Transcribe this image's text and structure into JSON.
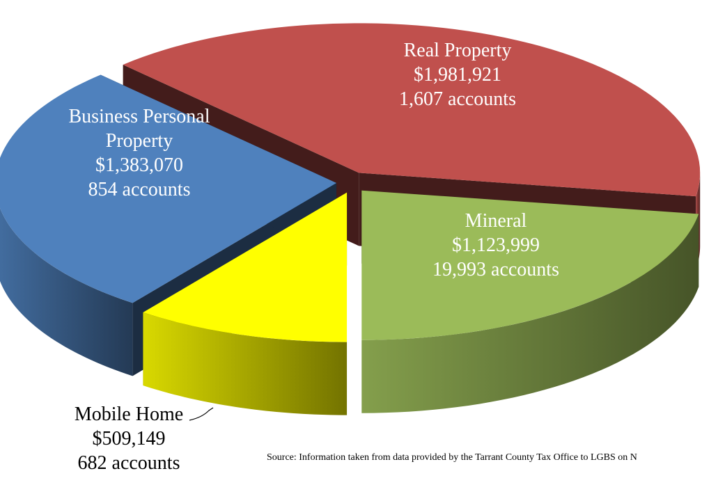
{
  "chart_data": {
    "type": "pie",
    "categories": [
      "Real Property",
      "Mineral",
      "Mobile Home",
      "Business Personal Property"
    ],
    "values": [
      1981921,
      1123999,
      509149,
      1383070
    ],
    "value_labels": [
      "$1,981,921",
      "$1,123,999",
      "$509,149",
      "$1,383,070"
    ],
    "account_labels": [
      "1,607 accounts",
      "19,993 accounts",
      "682 accounts",
      "854 accounts"
    ],
    "colors": [
      "#c0504d",
      "#9bbb59",
      "#ffff00",
      "#4f81bd"
    ],
    "source": "Source: Information taken from data provided by the Tarrant County Tax Office to LGBS on N"
  }
}
